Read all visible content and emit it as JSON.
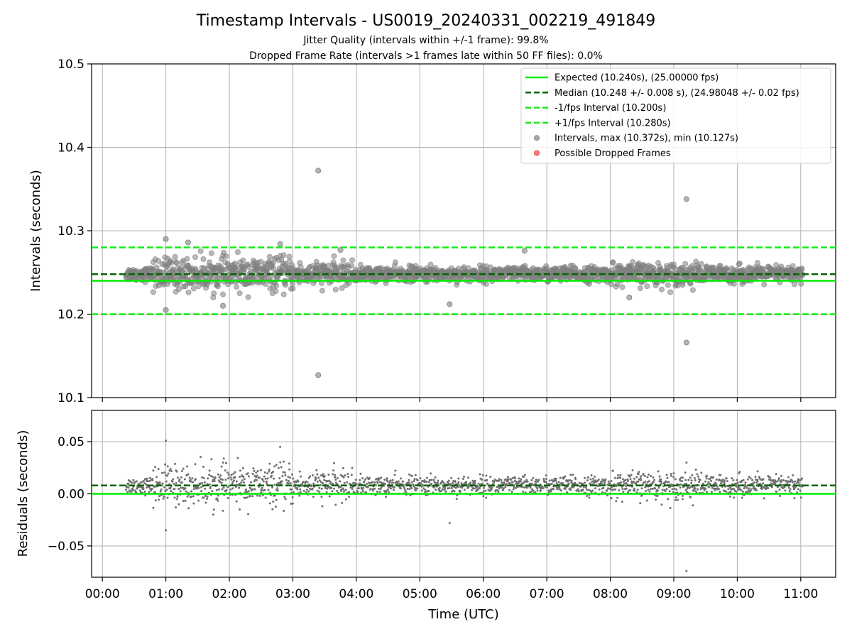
{
  "chart_data": [
    {
      "type": "scatter",
      "title": "Timestamp Intervals - US0019_20240331_002219_491849",
      "subtitle_lines": [
        "Jitter Quality (intervals within +/-1 frame): 99.8%",
        "Dropped Frame Rate (intervals >1 frames late within 50 FF files): 0.0%"
      ],
      "xlabel": "",
      "ylabel": "Intervals (seconds)",
      "xlim_hours": [
        -0.17,
        11.55
      ],
      "ylim": [
        10.1,
        10.5
      ],
      "yticks": [
        "10.1",
        "10.2",
        "10.3",
        "10.4",
        "10.5"
      ],
      "grid": true,
      "legend_position": "top-right",
      "reference_lines": [
        {
          "name": "Expected (10.240s), (25.00000 fps)",
          "y": 10.24,
          "color": "#00ee00",
          "style": "solid"
        },
        {
          "name": "Median (10.248 +/- 0.008 s), (24.98048 +/- 0.02 fps)",
          "y": 10.248,
          "color": "#006400",
          "style": "dashed"
        },
        {
          "name": "-1/fps Interval (10.200s)",
          "y": 10.2,
          "color": "#11ee11",
          "style": "dashed"
        },
        {
          "name": "+1/fps Interval (10.280s)",
          "y": 10.28,
          "color": "#11ee11",
          "style": "dashed"
        }
      ],
      "series": [
        {
          "name": "Intervals, max (10.372s), min (10.127s)",
          "color": "#808080",
          "x_range_hours": [
            0.37,
            11.03
          ],
          "center": 10.248,
          "typical_spread": 0.005,
          "outliers": [
            {
              "x_hours": 3.4,
              "y": 10.372
            },
            {
              "x_hours": 3.4,
              "y": 10.127
            },
            {
              "x_hours": 9.2,
              "y": 10.338
            },
            {
              "x_hours": 9.2,
              "y": 10.166
            },
            {
              "x_hours": 1.0,
              "y": 10.29
            },
            {
              "x_hours": 1.0,
              "y": 10.205
            },
            {
              "x_hours": 2.8,
              "y": 10.284
            },
            {
              "x_hours": 1.35,
              "y": 10.286
            },
            {
              "x_hours": 1.9,
              "y": 10.21
            },
            {
              "x_hours": 5.47,
              "y": 10.212
            },
            {
              "x_hours": 6.65,
              "y": 10.276
            },
            {
              "x_hours": 3.75,
              "y": 10.277
            },
            {
              "x_hours": 8.3,
              "y": 10.22
            }
          ]
        },
        {
          "name": "Possible Dropped Frames",
          "color": "#ee4444",
          "points": []
        }
      ]
    },
    {
      "type": "scatter",
      "title": "",
      "xlabel": "Time (UTC)",
      "ylabel": "Residuals (seconds)",
      "xlim_hours": [
        -0.17,
        11.55
      ],
      "ylim": [
        -0.08,
        0.08
      ],
      "yticks": [
        "−0.05",
        "0.00",
        "0.05"
      ],
      "xticks": [
        "00:00",
        "01:00",
        "02:00",
        "03:00",
        "04:00",
        "05:00",
        "06:00",
        "07:00",
        "08:00",
        "09:00",
        "10:00",
        "11:00"
      ],
      "grid": true,
      "reference_lines": [
        {
          "name": "zero",
          "y": 0.0,
          "color": "#00ee00",
          "style": "solid"
        },
        {
          "name": "median",
          "y": 0.008,
          "color": "#006400",
          "style": "dashed"
        }
      ],
      "series": [
        {
          "name": "",
          "color": "#707070",
          "note_outliers": [
            {
              "x_hours": 1.0,
              "y": 0.051
            },
            {
              "x_hours": 1.0,
              "y": -0.035
            },
            {
              "x_hours": 2.8,
              "y": 0.045
            },
            {
              "x_hours": 5.47,
              "y": -0.028
            },
            {
              "x_hours": 9.2,
              "y": -0.074
            },
            {
              "x_hours": 9.2,
              "y": 0.03
            }
          ]
        }
      ]
    }
  ]
}
